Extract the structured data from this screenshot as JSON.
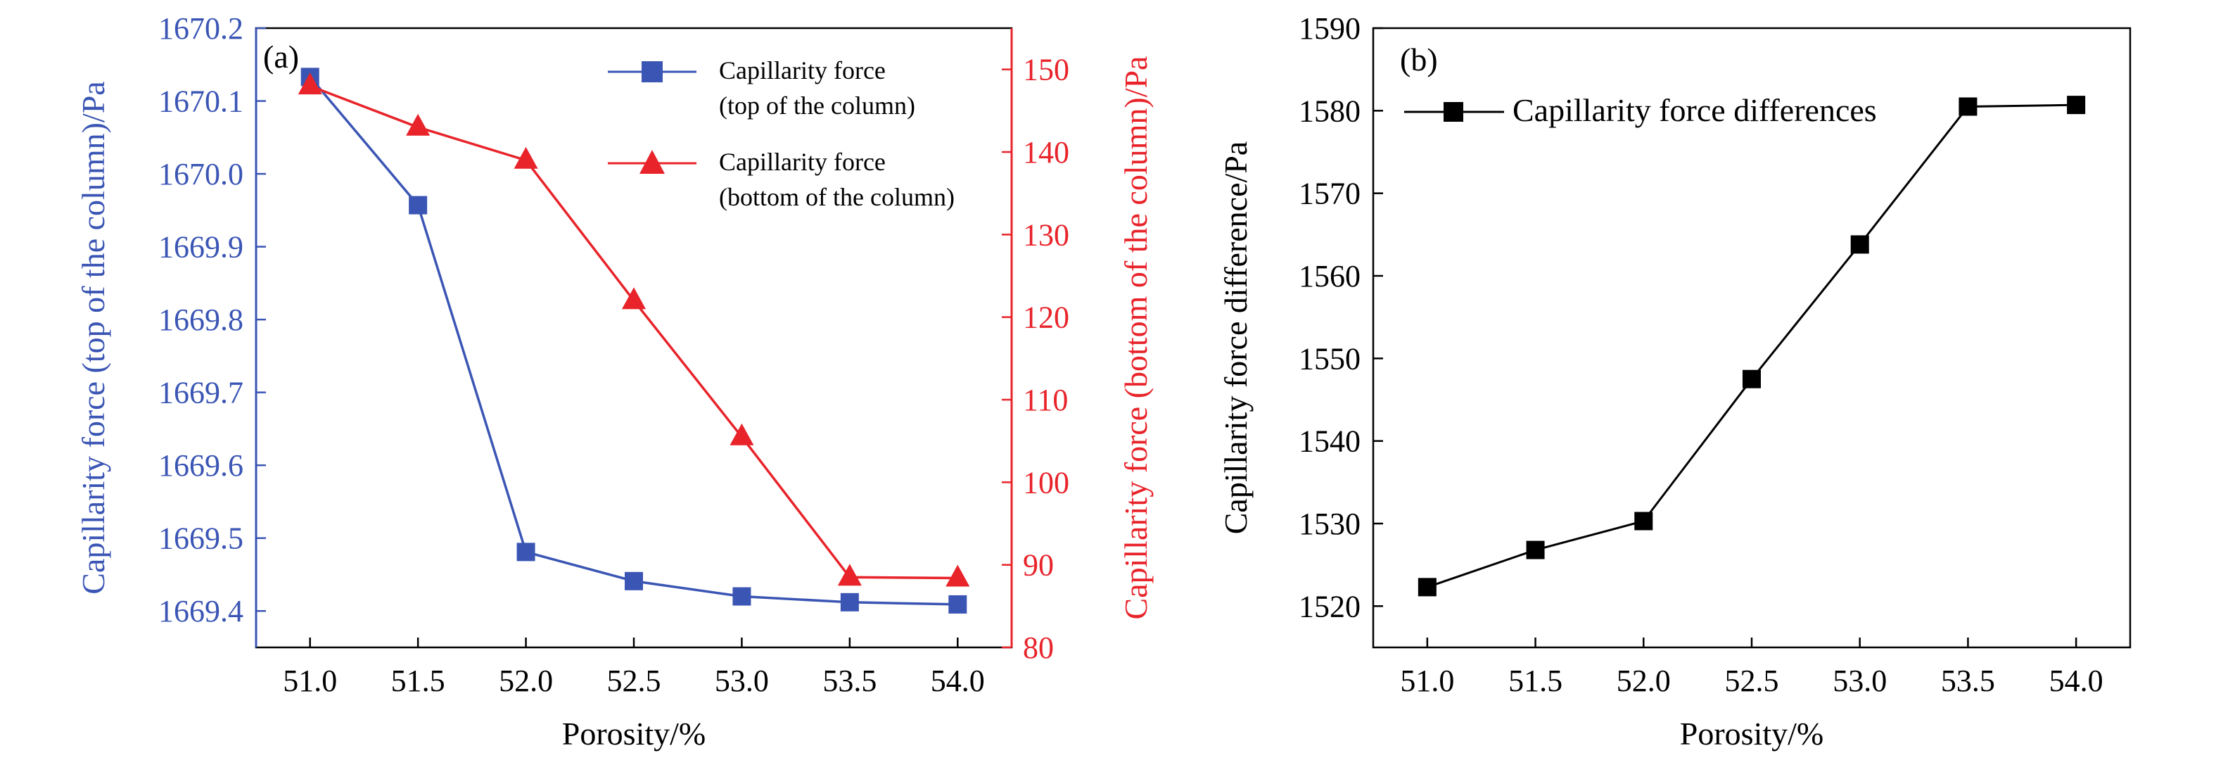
{
  "colors": {
    "top_series": "#3a55b4",
    "bottom_series": "#e8232a",
    "diff_series": "#000000",
    "axis": "#000000"
  },
  "chart_data": [
    {
      "panel": "(a)",
      "type": "line",
      "xlabel": "Porosity/%",
      "ylabel_left": "Capillarity force (top of the column)/Pa",
      "ylabel_right": "Capillarity force (bottom of the column)/Pa",
      "x": [
        51.0,
        51.5,
        52.0,
        52.5,
        53.0,
        53.5,
        54.0
      ],
      "xtick_labels": [
        "51.0",
        "51.5",
        "52.0",
        "52.5",
        "53.0",
        "53.5",
        "54.0"
      ],
      "xlim": [
        50.75,
        54.25
      ],
      "ylim_left": [
        1669.35,
        1670.2
      ],
      "yticks_left": [
        "1669.4",
        "1669.5",
        "1669.6",
        "1669.7",
        "1669.8",
        "1669.9",
        "1670.0",
        "1670.1",
        "1670.2"
      ],
      "ylim_right": [
        80,
        155
      ],
      "yticks_right": [
        "80",
        "90",
        "100",
        "110",
        "120",
        "130",
        "140",
        "150"
      ],
      "legend_position": "top-right",
      "series": [
        {
          "name": "Capillarity force",
          "name_line2": "(top of the column)",
          "axis": "left",
          "marker": "square",
          "color": "#3a55b4",
          "values": [
            1670.133,
            1669.957,
            1669.481,
            1669.441,
            1669.42,
            1669.412,
            1669.409
          ]
        },
        {
          "name": "Capillarity force",
          "name_line2": "(bottom of the column)",
          "axis": "right",
          "marker": "triangle",
          "color": "#e8232a",
          "values": [
            148,
            143,
            139,
            122,
            105.5,
            88.5,
            88.4
          ]
        }
      ]
    },
    {
      "panel": "(b)",
      "type": "line",
      "xlabel": "Porosity/%",
      "ylabel": "Capillarity force difference/Pa",
      "x": [
        51.0,
        51.5,
        52.0,
        52.5,
        53.0,
        53.5,
        54.0
      ],
      "xtick_labels": [
        "51.0",
        "51.5",
        "52.0",
        "52.5",
        "53.0",
        "53.5",
        "54.0"
      ],
      "xlim": [
        50.75,
        54.25
      ],
      "ylim": [
        1515,
        1590
      ],
      "yticks": [
        "1520",
        "1530",
        "1540",
        "1550",
        "1560",
        "1570",
        "1580",
        "1590"
      ],
      "legend_position": "top-left",
      "series": [
        {
          "name": "Capillarity force differences",
          "marker": "square",
          "color": "#000000",
          "values": [
            1522.3,
            1526.8,
            1530.3,
            1547.5,
            1563.8,
            1580.5,
            1580.7
          ]
        }
      ]
    }
  ]
}
